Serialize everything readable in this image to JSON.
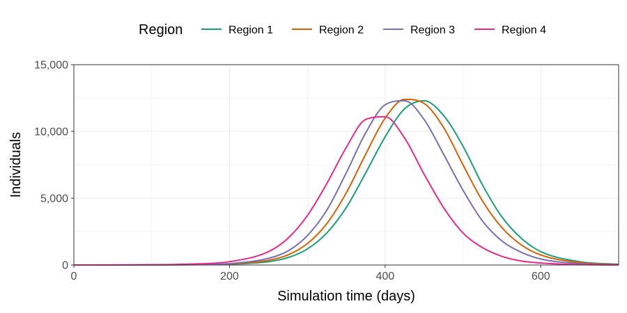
{
  "chart_data": {
    "type": "line",
    "xlabel": "Simulation time (days)",
    "ylabel": "Individuals",
    "xlim": [
      0,
      700
    ],
    "ylim": [
      0,
      15000
    ],
    "x_ticks": [
      0,
      200,
      400,
      600
    ],
    "x_tick_labels": [
      "0",
      "200",
      "400",
      "600"
    ],
    "y_ticks": [
      0,
      5000,
      10000,
      15000
    ],
    "y_tick_labels": [
      "0",
      "5,000",
      "10,000",
      "15,000"
    ],
    "grid": true,
    "legend": {
      "title": "Region",
      "position": "top"
    },
    "x": [
      0,
      50,
      100,
      150,
      200,
      250,
      275,
      300,
      325,
      350,
      375,
      400,
      425,
      450,
      475,
      500,
      525,
      550,
      575,
      600,
      650,
      700
    ],
    "series": [
      {
        "name": "Region 1",
        "color": "#1B9E77",
        "values": [
          0,
          0,
          5,
          20,
          60,
          250,
          550,
          1200,
          2400,
          4300,
          6900,
          9600,
          11700,
          12300,
          11200,
          8900,
          6000,
          3600,
          2000,
          1000,
          250,
          50
        ]
      },
      {
        "name": "Region 2",
        "color": "#D95F02",
        "values": [
          0,
          0,
          5,
          25,
          80,
          350,
          750,
          1600,
          3100,
          5400,
          8300,
          11000,
          12400,
          12100,
          10300,
          7500,
          4800,
          2800,
          1500,
          750,
          180,
          30
        ]
      },
      {
        "name": "Region 3",
        "color": "#7570B3",
        "values": [
          0,
          0,
          5,
          30,
          110,
          500,
          1050,
          2200,
          4100,
          6900,
          9900,
          12000,
          12300,
          10900,
          8300,
          5600,
          3300,
          1800,
          950,
          450,
          100,
          20
        ]
      },
      {
        "name": "Region 4",
        "color": "#E7298A",
        "values": [
          0,
          5,
          20,
          70,
          250,
          1000,
          2000,
          3700,
          6100,
          8800,
          10900,
          11100,
          9500,
          6800,
          4300,
          2400,
          1300,
          650,
          300,
          150,
          30,
          5
        ]
      }
    ]
  }
}
